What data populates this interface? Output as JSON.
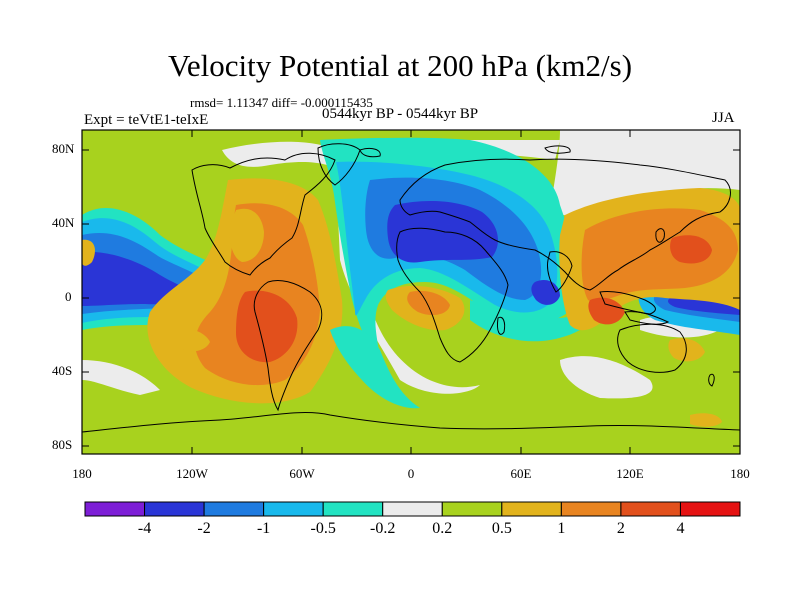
{
  "title": "Velocity Potential at 200 hPa (km2/s)",
  "stats": "rmsd= 1.11347 diff= -0.000115435",
  "left_label": "Expt = teVtE1-teIxE",
  "center_label": "0544kyr BP - 0544kyr BP",
  "right_label": "JJA",
  "lat_labels": [
    "80N",
    "40N",
    "0",
    "40S",
    "80S"
  ],
  "lon_labels": [
    "180",
    "120W",
    "60W",
    "0",
    "60E",
    "120E",
    "180"
  ],
  "colorbar": {
    "colors": [
      "#7d1ed6",
      "#2a35d6",
      "#1f7be0",
      "#19b9ec",
      "#22e3c2",
      "#ececec",
      "#a8d21e",
      "#e2b31c",
      "#e88420",
      "#e2501c",
      "#e51212"
    ],
    "labels": [
      "-4",
      "-2",
      "-1",
      "-0.5",
      "-0.2",
      "0.2",
      "0.5",
      "1",
      "2",
      "4"
    ]
  }
}
